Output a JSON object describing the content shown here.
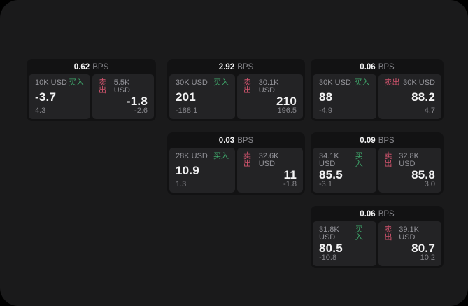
{
  "colors": {
    "background": "#000000",
    "window_bg": "#1a1a1b",
    "card_bg": "#121213",
    "panel_bg": "#232325",
    "buy_green": "#3fa96c",
    "sell_red": "#d2546e",
    "text_primary": "#f3f3f4",
    "text_muted": "#94949a",
    "text_dim": "#86868b"
  },
  "labels": {
    "bps_unit": "BPS",
    "buy": "买入",
    "sell": "卖出"
  },
  "cards": [
    {
      "bps": "0.62",
      "buy": {
        "amount": "10K USD",
        "value": "-3.7",
        "delta": "4.3"
      },
      "sell": {
        "amount": "5.5K USD",
        "value": "-1.8",
        "delta": "-2.6"
      }
    },
    {
      "bps": "2.92",
      "buy": {
        "amount": "30K USD",
        "value": "201",
        "delta": "-188.1"
      },
      "sell": {
        "amount": "30.1K USD",
        "value": "210",
        "delta": "196.5"
      }
    },
    {
      "bps": "0.06",
      "buy": {
        "amount": "30K USD",
        "value": "88",
        "delta": "-4.9"
      },
      "sell": {
        "amount": "30K USD",
        "value": "88.2",
        "delta": "4.7"
      }
    },
    {
      "bps": "0.03",
      "buy": {
        "amount": "28K USD",
        "value": "10.9",
        "delta": "1.3"
      },
      "sell": {
        "amount": "32.6K USD",
        "value": "11",
        "delta": "-1.8"
      }
    },
    {
      "bps": "0.09",
      "buy": {
        "amount": "34.1K USD",
        "value": "85.5",
        "delta": "-3.1"
      },
      "sell": {
        "amount": "32.8K USD",
        "value": "85.8",
        "delta": "3.0"
      }
    },
    {
      "bps": "0.06",
      "buy": {
        "amount": "31.8K USD",
        "value": "80.5",
        "delta": "-10.8"
      },
      "sell": {
        "amount": "39.1K USD",
        "value": "80.7",
        "delta": "10.2"
      }
    }
  ]
}
